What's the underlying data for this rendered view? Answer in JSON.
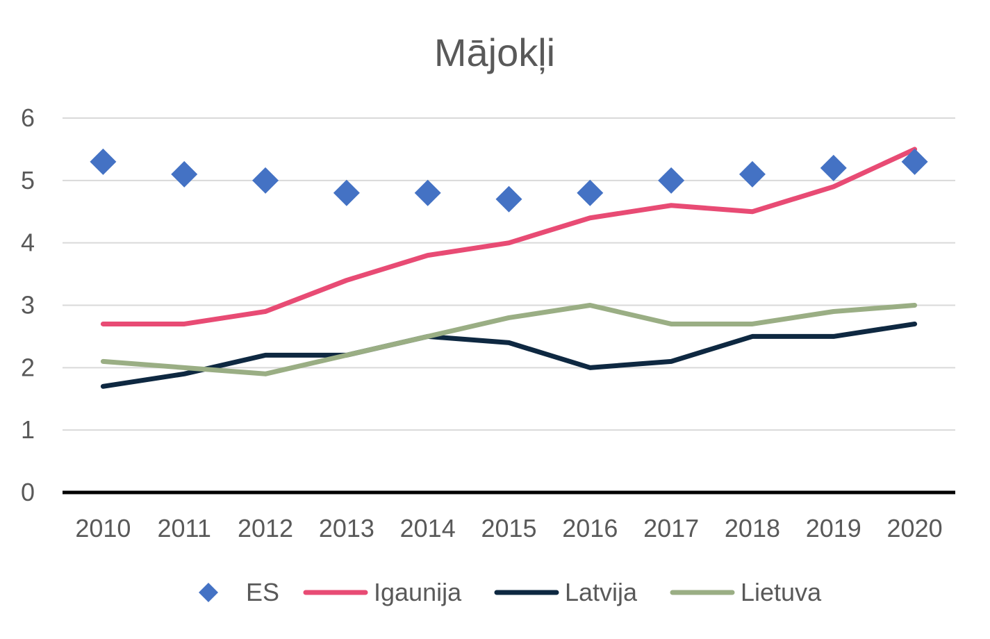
{
  "chart_data": {
    "type": "line",
    "title": "Mājokļi",
    "xlabel": "",
    "ylabel": "",
    "categories": [
      "2010",
      "2011",
      "2012",
      "2013",
      "2014",
      "2015",
      "2016",
      "2017",
      "2018",
      "2019",
      "2020"
    ],
    "yticks": [
      "0",
      "1",
      "2",
      "3",
      "4",
      "5",
      "6"
    ],
    "ylim": [
      0,
      6
    ],
    "grid": true,
    "legend_position": "bottom",
    "series": [
      {
        "name": "ES",
        "style": "markers",
        "marker": "diamond",
        "color": "#4472C4",
        "values": [
          5.3,
          5.1,
          5.0,
          4.8,
          4.8,
          4.7,
          4.8,
          5.0,
          5.1,
          5.2,
          5.3
        ]
      },
      {
        "name": "Igaunija",
        "style": "line",
        "color": "#E84B74",
        "values": [
          2.7,
          2.7,
          2.9,
          3.4,
          3.8,
          4.0,
          4.4,
          4.6,
          4.5,
          4.9,
          5.5
        ]
      },
      {
        "name": "Latvija",
        "style": "line",
        "color": "#0E2841",
        "values": [
          1.7,
          1.9,
          2.2,
          2.2,
          2.5,
          2.4,
          2.0,
          2.1,
          2.5,
          2.5,
          2.7
        ]
      },
      {
        "name": "Lietuva",
        "style": "line",
        "color": "#9AAE84",
        "values": [
          2.1,
          2.0,
          1.9,
          2.2,
          2.5,
          2.8,
          3.0,
          2.7,
          2.7,
          2.9,
          3.0
        ]
      }
    ]
  }
}
